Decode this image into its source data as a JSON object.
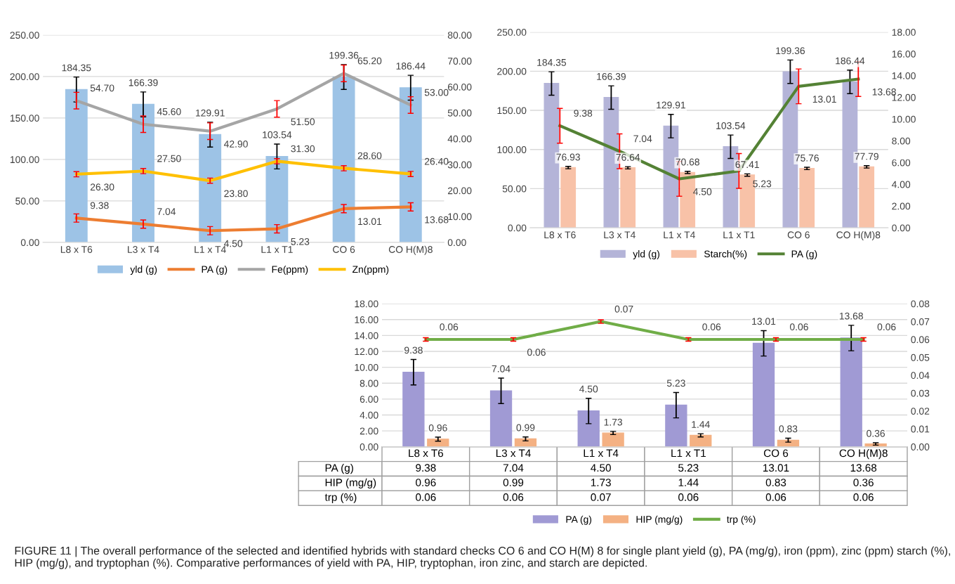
{
  "chart_data": [
    {
      "type": "bar",
      "categories": [
        "L8 x T6",
        "L3 x T4",
        "L1 x T4",
        "L1 x T1",
        "CO 6",
        "CO H(M)8"
      ],
      "series": [
        {
          "name": "yld (g)",
          "type": "bar",
          "color": "#9dc3e6",
          "values": [
            184.35,
            166.39,
            129.91,
            103.54,
            199.36,
            186.44
          ],
          "errors": [
            15,
            15,
            15,
            15,
            15,
            15
          ],
          "value_labels": [
            "184.35",
            "166.39",
            "129.91",
            "103.54",
            "199.36",
            "186.44"
          ]
        },
        {
          "name": "PA (g)",
          "type": "line",
          "axis": "y2",
          "color": "#ed7d31",
          "values": [
            9.38,
            7.04,
            4.5,
            5.23,
            13.01,
            13.68
          ],
          "errors": [
            1.6,
            1.6,
            1.6,
            1.6,
            1.6,
            1.6
          ],
          "value_labels": [
            "9.38",
            "7.04",
            "4.50",
            "5.23",
            "13.01",
            "13.68"
          ]
        },
        {
          "name": "Fe(ppm)",
          "type": "line",
          "axis": "y2",
          "color": "#a5a5a5",
          "values": [
            54.7,
            45.6,
            42.9,
            51.5,
            65.2,
            53.0
          ],
          "errors": [
            3.2,
            3.2,
            3.2,
            3.2,
            3.2,
            3.2
          ],
          "value_labels": [
            "54.70",
            "45.60",
            "42.90",
            "51.50",
            "65.20",
            "53.00"
          ]
        },
        {
          "name": "Zn(ppm)",
          "type": "line",
          "axis": "y2",
          "color": "#ffc000",
          "values": [
            26.3,
            27.5,
            23.8,
            31.3,
            28.6,
            26.4
          ],
          "errors": [
            1,
            1,
            1,
            1,
            1,
            1
          ],
          "value_labels": [
            "26.30",
            "27.50",
            "23.80",
            "31.30",
            "28.60",
            "26.40"
          ]
        }
      ],
      "ylim": [
        0,
        250
      ],
      "yticks": [
        {
          "value": 0,
          "label": "0.00"
        },
        {
          "value": 50,
          "label": "50.00"
        },
        {
          "value": 100,
          "label": "100.00"
        },
        {
          "value": 150,
          "label": "150.00"
        },
        {
          "value": 200,
          "label": "200.00"
        },
        {
          "value": 250,
          "label": "250.00"
        }
      ],
      "y2lim": [
        0,
        80
      ],
      "y2ticks": [
        {
          "value": 0,
          "label": "0.00"
        },
        {
          "value": 10,
          "label": "10.00"
        },
        {
          "value": 20,
          "label": "20.00"
        },
        {
          "value": 30,
          "label": "30.00"
        },
        {
          "value": 40,
          "label": "40.00"
        },
        {
          "value": 50,
          "label": "50.00"
        },
        {
          "value": 60,
          "label": "60.00"
        },
        {
          "value": 70,
          "label": "70.00"
        },
        {
          "value": 80,
          "label": "80.00"
        }
      ],
      "grid": "y",
      "legend": "bottom"
    },
    {
      "type": "bar",
      "categories": [
        "L8 x T6",
        "L3 x T4",
        "L1 x T4",
        "L1 x T1",
        "CO 6",
        "CO H(M)8"
      ],
      "series": [
        {
          "name": "yld (g)",
          "type": "bar",
          "color": "#b4b4d8",
          "values": [
            184.35,
            166.39,
            129.91,
            103.54,
            199.36,
            186.44
          ],
          "errors": [
            15,
            15,
            15,
            15,
            15,
            15
          ],
          "value_labels": [
            "184.35",
            "166.39",
            "129.91",
            "103.54",
            "199.36",
            "186.44"
          ]
        },
        {
          "name": "Starch(%)",
          "type": "bar",
          "color": "#f8c2a8",
          "values": [
            76.93,
            76.64,
            70.68,
            67.41,
            75.76,
            77.79
          ],
          "errors": [
            1.5,
            1.5,
            1.5,
            1.5,
            1.5,
            1.5
          ],
          "value_labels": [
            "76.93",
            "76.64",
            "70.68",
            "67.41",
            "75.76",
            "77.79"
          ]
        },
        {
          "name": "PA (g)",
          "type": "line",
          "axis": "y2",
          "color": "#548235",
          "values": [
            9.38,
            7.04,
            4.5,
            5.23,
            13.01,
            13.68
          ],
          "errors": [
            1.6,
            1.6,
            1.6,
            1.6,
            1.6,
            1.6
          ],
          "value_labels": [
            "9.38",
            "7.04",
            "4.50",
            "5.23",
            "13.01",
            "13.68"
          ]
        }
      ],
      "ylim": [
        0,
        250
      ],
      "yticks": [
        {
          "value": 0,
          "label": "0.00"
        },
        {
          "value": 50,
          "label": "50.00"
        },
        {
          "value": 100,
          "label": "100.00"
        },
        {
          "value": 150,
          "label": "150.00"
        },
        {
          "value": 200,
          "label": "200.00"
        },
        {
          "value": 250,
          "label": "250.00"
        }
      ],
      "y2lim": [
        0,
        18
      ],
      "y2ticks": [
        {
          "value": 0,
          "label": "0.00"
        },
        {
          "value": 2,
          "label": "2.00"
        },
        {
          "value": 4,
          "label": "4.00"
        },
        {
          "value": 6,
          "label": "6.00"
        },
        {
          "value": 8,
          "label": "8.00"
        },
        {
          "value": 10,
          "label": "10.00"
        },
        {
          "value": 12,
          "label": "12.00"
        },
        {
          "value": 14,
          "label": "14.00"
        },
        {
          "value": 16,
          "label": "16.00"
        },
        {
          "value": 18,
          "label": "18.00"
        }
      ],
      "grid": "y",
      "legend": "bottom"
    },
    {
      "type": "bar",
      "categories": [
        "L8 x T6",
        "L3 x T4",
        "L1 x T4",
        "L1 x T1",
        "CO 6",
        "CO H(M)8"
      ],
      "series": [
        {
          "name": "PA (g)",
          "type": "bar",
          "color": "#a09ad4",
          "values": [
            9.38,
            7.04,
            4.5,
            5.23,
            13.01,
            13.68
          ],
          "errors": [
            1.6,
            1.6,
            1.6,
            1.6,
            1.6,
            1.6
          ],
          "value_labels": [
            "9.38",
            "7.04",
            "4.50",
            "5.23",
            "13.01",
            "13.68"
          ]
        },
        {
          "name": "HIP (mg/g)",
          "type": "bar",
          "color": "#f4b183",
          "values": [
            0.96,
            0.99,
            1.73,
            1.44,
            0.83,
            0.36
          ],
          "errors": [
            0.25,
            0.25,
            0.2,
            0.2,
            0.25,
            0.15
          ],
          "value_labels": [
            "0.96",
            "0.99",
            "1.73",
            "1.44",
            "0.83",
            "0.36"
          ]
        },
        {
          "name": "trp (%)",
          "type": "line",
          "axis": "y2",
          "color": "#70ad47",
          "values": [
            0.06,
            0.06,
            0.07,
            0.06,
            0.06,
            0.06
          ],
          "errors": [
            0.001,
            0.001,
            0.001,
            0.001,
            0.001,
            0.001
          ],
          "value_labels": [
            "0.06",
            "0.06",
            "0.07",
            "0.06",
            "0.06",
            "0.06"
          ]
        }
      ],
      "ylim": [
        0,
        18
      ],
      "yticks": [
        {
          "value": 0,
          "label": "0.00"
        },
        {
          "value": 2,
          "label": "2.00"
        },
        {
          "value": 4,
          "label": "4.00"
        },
        {
          "value": 6,
          "label": "6.00"
        },
        {
          "value": 8,
          "label": "8.00"
        },
        {
          "value": 10,
          "label": "10.00"
        },
        {
          "value": 12,
          "label": "12.00"
        },
        {
          "value": 14,
          "label": "14.00"
        },
        {
          "value": 16,
          "label": "16.00"
        },
        {
          "value": 18,
          "label": "18.00"
        }
      ],
      "y2lim": [
        0,
        0.08
      ],
      "y2ticks": [
        {
          "value": 0,
          "label": "0.00"
        },
        {
          "value": 0.01,
          "label": "0.01"
        },
        {
          "value": 0.02,
          "label": "0.02"
        },
        {
          "value": 0.03,
          "label": "0.03"
        },
        {
          "value": 0.04,
          "label": "0.04"
        },
        {
          "value": 0.05,
          "label": "0.05"
        },
        {
          "value": 0.06,
          "label": "0.06"
        },
        {
          "value": 0.07,
          "label": "0.07"
        },
        {
          "value": 0.08,
          "label": "0.08"
        }
      ],
      "grid": "y",
      "legend": "bottom",
      "data_labels": true,
      "annotations": [
        "FIGURE 11 | The overall performance of the selected and identified hybrids with standard checks CO 6 and CO H(M) 8 for single plant yield (g), PA (mg/g), iron (ppm), zinc (ppm) starch (%), HIP (mg/g), and tryptophan (%). Comparative performances of yield with PA, HIP, tryptophan, iron zinc, and starch are depicted."
      ]
    }
  ]
}
